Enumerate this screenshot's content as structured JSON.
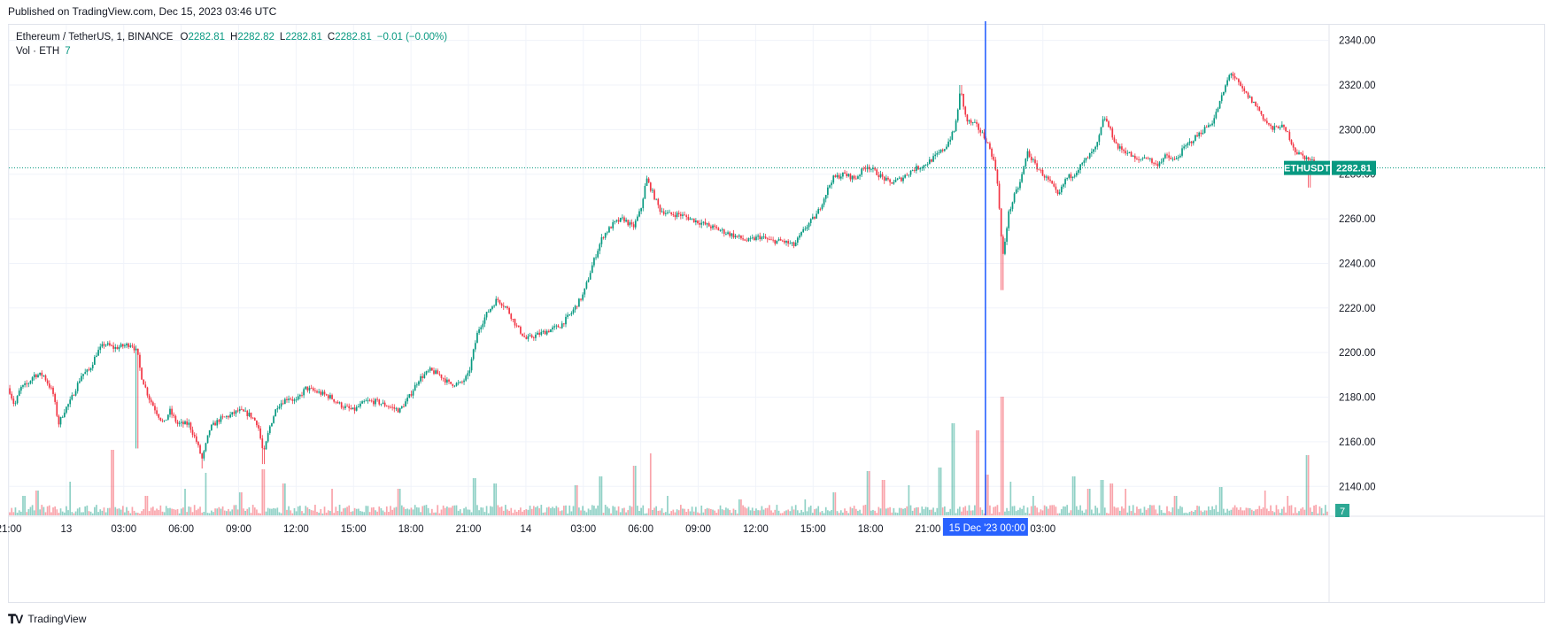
{
  "header": {
    "published": "Published on TradingView.com, Dec 15, 2023 03:46 UTC"
  },
  "legend": {
    "symbol": "Ethereum / TetherUS, 1, BINANCE",
    "o_label": "O",
    "o_value": "2282.81",
    "h_label": "H",
    "h_value": "2282.82",
    "l_label": "L",
    "l_value": "2282.81",
    "c_label": "C",
    "c_value": "2282.81",
    "change": "−0.01 (−0.00%)",
    "vol_label": "Vol · ETH",
    "vol_value": "7"
  },
  "footer": {
    "brand": "TradingView"
  },
  "colors": {
    "up": "#089981",
    "down": "#f23645",
    "crosshair": "#2962ff",
    "grid": "#f0f3fa",
    "text": "#131722"
  },
  "chart_data": {
    "type": "candlestick",
    "symbol": "ETHUSDT",
    "interval": "1",
    "y_range": [
      2127,
      2347
    ],
    "y_ticks": [
      "2340.00",
      "2320.00",
      "2300.00",
      "2280.00",
      "2260.00",
      "2240.00",
      "2220.00",
      "2200.00",
      "2180.00",
      "2160.00",
      "2140.00"
    ],
    "y_tick_values": [
      2340,
      2320,
      2300,
      2280,
      2260,
      2240,
      2220,
      2200,
      2180,
      2160,
      2140
    ],
    "x_ticks": [
      "21:00",
      "13",
      "03:00",
      "06:00",
      "09:00",
      "12:00",
      "15:00",
      "18:00",
      "21:00",
      "14",
      "03:00",
      "06:00",
      "09:00",
      "12:00",
      "15:00",
      "18:00",
      "21:00",
      "03:00"
    ],
    "x_tick_hours": [
      0,
      3,
      6,
      9,
      12,
      15,
      18,
      21,
      24,
      27,
      30,
      33,
      36,
      39,
      42,
      45,
      48,
      54
    ],
    "last_price": 2282.81,
    "last_price_label": "2282.81",
    "symbol_tag": "ETHUSDT",
    "last_volume": "7",
    "crosshair_label": "15 Dec '23   00:00",
    "crosshair_hour": 51,
    "price_path": [
      [
        0,
        2184
      ],
      [
        0.3,
        2176
      ],
      [
        0.6,
        2184
      ],
      [
        1,
        2186
      ],
      [
        1.3,
        2190
      ],
      [
        1.8,
        2190
      ],
      [
        2.3,
        2182
      ],
      [
        2.6,
        2168
      ],
      [
        2.9,
        2174
      ],
      [
        3.2,
        2178
      ],
      [
        3.5,
        2184
      ],
      [
        3.8,
        2190
      ],
      [
        4.2,
        2192
      ],
      [
        4.6,
        2200
      ],
      [
        5,
        2204
      ],
      [
        5.5,
        2202
      ],
      [
        6,
        2203
      ],
      [
        6.4,
        2204
      ],
      [
        6.7,
        2200
      ],
      [
        6.9,
        2190
      ],
      [
        7.3,
        2180
      ],
      [
        7.8,
        2172
      ],
      [
        8.1,
        2168
      ],
      [
        8.4,
        2174
      ],
      [
        8.8,
        2168
      ],
      [
        9.4,
        2168
      ],
      [
        9.8,
        2160
      ],
      [
        10.1,
        2152
      ],
      [
        10.5,
        2166
      ],
      [
        11,
        2170
      ],
      [
        11.6,
        2172
      ],
      [
        12,
        2174
      ],
      [
        12.6,
        2172
      ],
      [
        13,
        2168
      ],
      [
        13.3,
        2154
      ],
      [
        13.6,
        2166
      ],
      [
        14,
        2176
      ],
      [
        14.6,
        2180
      ],
      [
        15,
        2178
      ],
      [
        15.5,
        2184
      ],
      [
        16.2,
        2182
      ],
      [
        16.8,
        2180
      ],
      [
        17.4,
        2176
      ],
      [
        18,
        2174
      ],
      [
        18.6,
        2178
      ],
      [
        19.2,
        2178
      ],
      [
        19.8,
        2176
      ],
      [
        20.4,
        2174
      ],
      [
        20.9,
        2180
      ],
      [
        21.4,
        2188
      ],
      [
        22,
        2192
      ],
      [
        22.5,
        2190
      ],
      [
        23,
        2186
      ],
      [
        23.6,
        2186
      ],
      [
        24,
        2190
      ],
      [
        24.5,
        2210
      ],
      [
        25,
        2218
      ],
      [
        25.5,
        2224
      ],
      [
        26,
        2220
      ],
      [
        26.5,
        2212
      ],
      [
        27,
        2206
      ],
      [
        27.6,
        2208
      ],
      [
        28.2,
        2210
      ],
      [
        28.8,
        2212
      ],
      [
        29.4,
        2218
      ],
      [
        30,
        2226
      ],
      [
        30.5,
        2240
      ],
      [
        31,
        2252
      ],
      [
        31.6,
        2258
      ],
      [
        32.1,
        2260
      ],
      [
        32.6,
        2256
      ],
      [
        33,
        2264
      ],
      [
        33.3,
        2278
      ],
      [
        33.6,
        2272
      ],
      [
        34,
        2264
      ],
      [
        34.5,
        2262
      ],
      [
        35,
        2262
      ],
      [
        35.6,
        2260
      ],
      [
        36.2,
        2258
      ],
      [
        36.8,
        2256
      ],
      [
        37.4,
        2254
      ],
      [
        38,
        2252
      ],
      [
        38.6,
        2250
      ],
      [
        39.2,
        2252
      ],
      [
        39.8,
        2250
      ],
      [
        40.4,
        2250
      ],
      [
        41,
        2248
      ],
      [
        41.6,
        2256
      ],
      [
        42.2,
        2262
      ],
      [
        42.6,
        2270
      ],
      [
        43,
        2278
      ],
      [
        43.6,
        2280
      ],
      [
        44.2,
        2278
      ],
      [
        44.8,
        2284
      ],
      [
        45.4,
        2280
      ],
      [
        46,
        2276
      ],
      [
        46.6,
        2278
      ],
      [
        47.2,
        2282
      ],
      [
        47.8,
        2284
      ],
      [
        48.4,
        2288
      ],
      [
        48.9,
        2292
      ],
      [
        49.4,
        2300
      ],
      [
        49.7,
        2318
      ],
      [
        50,
        2304
      ],
      [
        50.5,
        2302
      ],
      [
        51,
        2296
      ],
      [
        51.3,
        2290
      ],
      [
        51.6,
        2280
      ],
      [
        51.9,
        2242
      ],
      [
        52.2,
        2262
      ],
      [
        52.5,
        2270
      ],
      [
        52.8,
        2276
      ],
      [
        53.2,
        2290
      ],
      [
        53.6,
        2284
      ],
      [
        54,
        2280
      ],
      [
        54.4,
        2276
      ],
      [
        54.8,
        2270
      ],
      [
        55.2,
        2278
      ],
      [
        55.6,
        2280
      ],
      [
        56,
        2284
      ],
      [
        56.4,
        2288
      ],
      [
        56.8,
        2292
      ],
      [
        57.2,
        2306
      ],
      [
        57.5,
        2300
      ],
      [
        57.9,
        2292
      ],
      [
        58.4,
        2290
      ],
      [
        58.9,
        2286
      ],
      [
        59.4,
        2288
      ],
      [
        59.9,
        2284
      ],
      [
        60.4,
        2288
      ],
      [
        60.9,
        2286
      ],
      [
        61.4,
        2292
      ],
      [
        61.9,
        2296
      ],
      [
        62.4,
        2300
      ],
      [
        62.9,
        2304
      ],
      [
        63.4,
        2316
      ],
      [
        63.8,
        2326
      ],
      [
        64.1,
        2322
      ],
      [
        64.4,
        2318
      ],
      [
        64.8,
        2314
      ],
      [
        65.2,
        2310
      ],
      [
        65.6,
        2304
      ],
      [
        66,
        2300
      ],
      [
        66.4,
        2302
      ],
      [
        66.8,
        2298
      ],
      [
        67.2,
        2290
      ],
      [
        67.6,
        2288
      ],
      [
        68,
        2286
      ],
      [
        68.4,
        2284
      ],
      [
        68.7,
        2282.81
      ]
    ],
    "volume_spikes": [
      [
        0.8,
        22
      ],
      [
        1.5,
        28
      ],
      [
        3.2,
        38
      ],
      [
        5.4,
        74
      ],
      [
        7.2,
        22
      ],
      [
        9.2,
        30
      ],
      [
        10.3,
        48
      ],
      [
        12.1,
        26
      ],
      [
        13.3,
        52
      ],
      [
        14.4,
        36
      ],
      [
        16.9,
        30
      ],
      [
        20.4,
        30
      ],
      [
        24.3,
        42
      ],
      [
        25.4,
        36
      ],
      [
        29.6,
        34
      ],
      [
        30.9,
        44
      ],
      [
        32.7,
        56
      ],
      [
        33.5,
        70
      ],
      [
        34.4,
        22
      ],
      [
        38.2,
        18
      ],
      [
        41.6,
        18
      ],
      [
        43.1,
        26
      ],
      [
        44.9,
        50
      ],
      [
        45.7,
        40
      ],
      [
        47,
        34
      ],
      [
        48.6,
        54
      ],
      [
        49.3,
        104
      ],
      [
        50.6,
        96
      ],
      [
        51.1,
        46
      ],
      [
        51.9,
        134
      ],
      [
        52.3,
        38
      ],
      [
        53.5,
        22
      ],
      [
        55.6,
        44
      ],
      [
        56.4,
        30
      ],
      [
        57.1,
        40
      ],
      [
        57.6,
        36
      ],
      [
        58.3,
        30
      ],
      [
        60.9,
        22
      ],
      [
        63.3,
        32
      ],
      [
        65.6,
        28
      ],
      [
        66.8,
        22
      ],
      [
        67.8,
        68
      ]
    ]
  }
}
